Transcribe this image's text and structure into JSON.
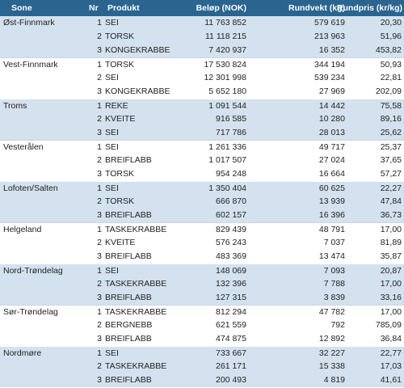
{
  "table": {
    "columns": [
      "Sone",
      "Nr",
      "Produkt",
      "Beløp (NOK)",
      "Rundvekt (kg)",
      "Rundpris (kr/kg)"
    ],
    "groups": [
      {
        "zone": "Øst-Finnmark",
        "rows": [
          [
            "1",
            "SEI",
            "11 763 852",
            "579 619",
            "20,30"
          ],
          [
            "2",
            "TORSK",
            "11 118 215",
            "213 963",
            "51,96"
          ],
          [
            "3",
            "KONGEKRABBE",
            "7 420 937",
            "16 352",
            "453,82"
          ]
        ]
      },
      {
        "zone": "Vest-Finnmark",
        "rows": [
          [
            "1",
            "TORSK",
            "17 530 824",
            "344 194",
            "50,93"
          ],
          [
            "2",
            "SEI",
            "12 301 998",
            "539 234",
            "22,81"
          ],
          [
            "3",
            "KONGEKRABBE",
            "5 652 180",
            "27 969",
            "202,09"
          ]
        ]
      },
      {
        "zone": "Troms",
        "rows": [
          [
            "1",
            "REKE",
            "1 091 544",
            "14 442",
            "75,58"
          ],
          [
            "2",
            "KVEITE",
            "916 585",
            "10 280",
            "89,16"
          ],
          [
            "3",
            "SEI",
            "717 786",
            "28 013",
            "25,62"
          ]
        ]
      },
      {
        "zone": "Vesterålen",
        "rows": [
          [
            "1",
            "SEI",
            "1 261 336",
            "49 717",
            "25,37"
          ],
          [
            "2",
            "BREIFLABB",
            "1 017 507",
            "27 024",
            "37,65"
          ],
          [
            "3",
            "TORSK",
            "954 248",
            "16 664",
            "57,27"
          ]
        ]
      },
      {
        "zone": "Lofoten/Salten",
        "rows": [
          [
            "1",
            "SEI",
            "1 350 404",
            "60 625",
            "22,27"
          ],
          [
            "2",
            "TORSK",
            "666 870",
            "13 939",
            "47,84"
          ],
          [
            "3",
            "BREIFLABB",
            "602 157",
            "16 396",
            "36,73"
          ]
        ]
      },
      {
        "zone": "Helgeland",
        "rows": [
          [
            "1",
            "TASKEKRABBE",
            "829 439",
            "48 791",
            "17,00"
          ],
          [
            "2",
            "KVEITE",
            "576 243",
            "7 037",
            "81,89"
          ],
          [
            "3",
            "BREIFLABB",
            "483 369",
            "13 474",
            "35,87"
          ]
        ]
      },
      {
        "zone": "Nord-Trøndelag",
        "rows": [
          [
            "1",
            "SEI",
            "148 069",
            "7 093",
            "20,87"
          ],
          [
            "2",
            "TASKEKRABBE",
            "132 396",
            "7 788",
            "17,00"
          ],
          [
            "3",
            "BREIFLABB",
            "127 315",
            "3 839",
            "33,16"
          ]
        ]
      },
      {
        "zone": "Sør-Trøndelag",
        "rows": [
          [
            "1",
            "TASKEKRABBE",
            "812 294",
            "47 782",
            "17,00"
          ],
          [
            "2",
            "BERGNEBB",
            "621 559",
            "792",
            "785,09"
          ],
          [
            "3",
            "BREIFLABB",
            "474 875",
            "12 892",
            "36,84"
          ]
        ]
      },
      {
        "zone": "Nordmøre",
        "rows": [
          [
            "1",
            "SEI",
            "733 667",
            "32 227",
            "22,77"
          ],
          [
            "2",
            "TASKEKRABBE",
            "261 171",
            "15 338",
            "17,03"
          ],
          [
            "3",
            "BREIFLABB",
            "200 493",
            "4 819",
            "41,61"
          ]
        ]
      }
    ]
  }
}
